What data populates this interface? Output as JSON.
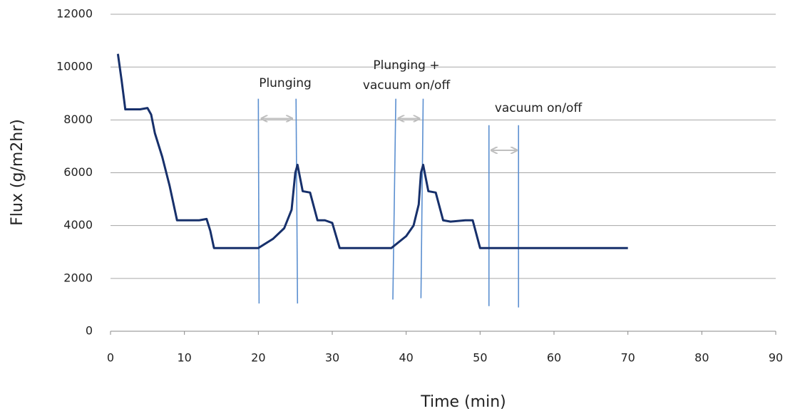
{
  "chart_data": {
    "type": "line",
    "y_label": "Flux (g/m2hr)",
    "x_label": "Time (min)",
    "xlim": [
      0,
      90
    ],
    "xticks": [
      0,
      10,
      20,
      30,
      40,
      50,
      60,
      70,
      80,
      90
    ],
    "ylim": [
      0,
      12000
    ],
    "yticks": [
      0,
      2000,
      4000,
      6000,
      8000,
      10000,
      12000
    ],
    "grid": true,
    "series": [
      {
        "color": "#17306b",
        "x": [
          1,
          1.5,
          2,
          3,
          4,
          5,
          5.5,
          6,
          7,
          8,
          9,
          10,
          12,
          13,
          13.5,
          14,
          15,
          19,
          20,
          22,
          23.5,
          24.5,
          25,
          25.3,
          26,
          27,
          28,
          29,
          30,
          31,
          33,
          37,
          38,
          40,
          41,
          41.7,
          42,
          42.3,
          43,
          44,
          45,
          46,
          48,
          49,
          50,
          51,
          70
        ],
        "values": [
          10500,
          9500,
          8400,
          8400,
          8400,
          8450,
          8200,
          7500,
          6600,
          5500,
          4200,
          4200,
          4200,
          4250,
          3800,
          3150,
          3150,
          3150,
          3150,
          3500,
          3900,
          4600,
          6000,
          6300,
          5300,
          5250,
          4200,
          4200,
          4100,
          3150,
          3150,
          3150,
          3150,
          3600,
          4000,
          4800,
          6000,
          6300,
          5300,
          5250,
          4200,
          4150,
          4200,
          4200,
          3150,
          3150,
          3150
        ]
      }
    ],
    "marker_color": "#5b8fd0",
    "markers": [
      {
        "x": [
          20.1,
          20
        ],
        "y": [
          1050,
          8800
        ]
      },
      {
        "x": [
          25.3,
          25.1
        ],
        "y": [
          1050,
          8800
        ]
      },
      {
        "x": [
          38.2,
          38.6
        ],
        "y": [
          1200,
          8800
        ]
      },
      {
        "x": [
          42,
          42.3
        ],
        "y": [
          1250,
          8800
        ]
      },
      {
        "x": [
          51.2,
          51.2
        ],
        "y": [
          950,
          7800
        ]
      },
      {
        "x": [
          55.2,
          55.2
        ],
        "y": [
          900,
          7800
        ]
      }
    ],
    "arrow_color": "#bfbfbf",
    "arrows": [
      {
        "x": [
          20.4,
          24.6
        ],
        "y": 8050
      },
      {
        "x": [
          38.9,
          41.8
        ],
        "y": 8050
      },
      {
        "x": [
          51.5,
          55
        ],
        "y": 6850
      }
    ],
    "annotations": [
      "Plunging",
      "Plunging   +",
      "vacuum on/off",
      "vacuum on/off"
    ]
  }
}
